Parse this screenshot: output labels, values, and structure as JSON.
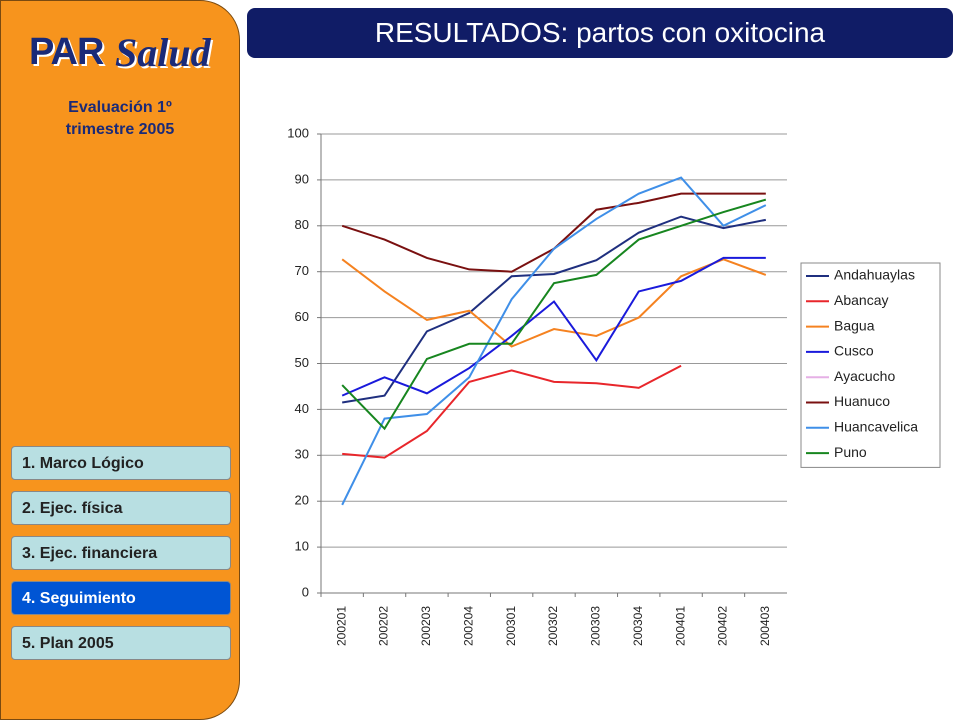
{
  "sidebar": {
    "logo": {
      "par": "PAR",
      "salud": "Salud"
    },
    "evaluation": [
      "Evaluación 1º",
      "trimestre 2005"
    ],
    "nav": [
      "1. Marco Lógico",
      "2. Ejec. física",
      "3. Ejec. financiera",
      "4. Seguimiento",
      "5. Plan 2005"
    ]
  },
  "header": {
    "title": "RESULTADOS: partos con oxitocina"
  },
  "chart_data": {
    "type": "line",
    "categories": [
      "200201",
      "200202",
      "200203",
      "200204",
      "200301",
      "200302",
      "200303",
      "200304",
      "200401",
      "200402",
      "200403"
    ],
    "series": [
      {
        "name": "Andahuaylas",
        "color": "#1f2f7f",
        "values": [
          41.5,
          43,
          57,
          61,
          69,
          69.5,
          72.5,
          78.5,
          82,
          79.5,
          81.3
        ]
      },
      {
        "name": "Abancay",
        "color": "#e8262b",
        "values": [
          30.3,
          29.5,
          35.3,
          46,
          48.5,
          46,
          45.7,
          44.7,
          49.5,
          null,
          null
        ]
      },
      {
        "name": "Bagua",
        "color": "#f58220",
        "values": [
          72.7,
          65.7,
          59.5,
          61.5,
          53.7,
          57.5,
          56,
          60,
          69,
          72.7,
          69.3
        ]
      },
      {
        "name": "Cusco",
        "color": "#1a1adb",
        "values": [
          43,
          47,
          43.5,
          49,
          56,
          63.5,
          50.7,
          65.7,
          68,
          73,
          73
        ]
      },
      {
        "name": "Ayacucho",
        "color": "#e6b0e6",
        "values": [
          null,
          null,
          null,
          null,
          null,
          null,
          null,
          null,
          null,
          null,
          null
        ]
      },
      {
        "name": "Huanuco",
        "color": "#7a1010",
        "values": [
          80,
          77,
          73,
          70.5,
          70,
          75,
          83.5,
          85,
          87,
          87,
          87
        ]
      },
      {
        "name": "Huancavelica",
        "color": "#3f8fe8",
        "values": [
          19.2,
          38,
          39,
          47,
          64,
          75,
          81.5,
          87,
          90.5,
          80,
          84.5
        ]
      },
      {
        "name": "Puno",
        "color": "#17861f",
        "values": [
          45.3,
          35.8,
          51,
          54.3,
          54.3,
          67.5,
          69.3,
          77,
          80,
          83,
          85.7
        ]
      }
    ],
    "ylim": [
      0,
      100
    ],
    "yticks": [
      0,
      10,
      20,
      30,
      40,
      50,
      60,
      70,
      80,
      90,
      100
    ],
    "grid": true,
    "legend": "right"
  }
}
